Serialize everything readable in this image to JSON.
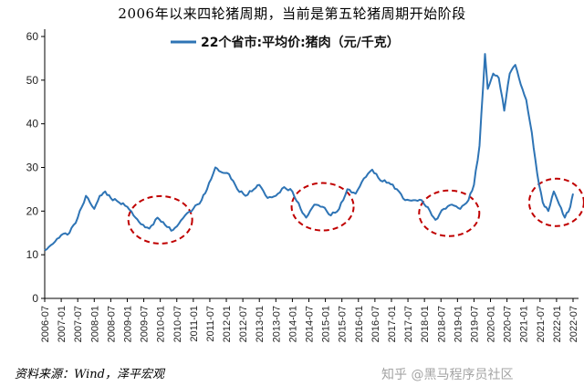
{
  "chart_data": {
    "type": "line",
    "title": "2006年以来四轮猪周期，当前是第五轮猪周期开始阶段",
    "source": "资料来源：Wind，泽平宏观",
    "watermark": "知乎 @黑马程序员社区",
    "ylim": [
      0,
      60
    ],
    "yticks": [
      "0",
      "10",
      "20",
      "30",
      "40",
      "50",
      "60"
    ],
    "xticks": [
      "2006-07",
      "2007-01",
      "2007-07",
      "2008-01",
      "2008-07",
      "2009-01",
      "2009-07",
      "2010-01",
      "2010-07",
      "2011-01",
      "2011-07",
      "2012-01",
      "2012-07",
      "2013-01",
      "2013-07",
      "2014-01",
      "2014-07",
      "2015-01",
      "2015-07",
      "2016-01",
      "2016-07",
      "2017-01",
      "2017-07",
      "2018-01",
      "2018-07",
      "2019-01",
      "2019-07",
      "2020-01",
      "2020-07",
      "2021-01",
      "2021-07",
      "2022-01",
      "2022-07"
    ],
    "grid": false,
    "legend_position": "top",
    "series": [
      {
        "name": "22个省市:平均价:猪肉（元/千克）",
        "color": "#2e74b5",
        "points": [
          [
            "2006-07",
            11.0
          ],
          [
            "2006-10",
            12.5
          ],
          [
            "2007-01",
            14.5
          ],
          [
            "2007-04",
            15.0
          ],
          [
            "2007-07",
            18.5
          ],
          [
            "2007-10",
            23.5
          ],
          [
            "2008-01",
            20.5
          ],
          [
            "2008-03",
            23.5
          ],
          [
            "2008-05",
            24.5
          ],
          [
            "2008-07",
            23.0
          ],
          [
            "2008-10",
            22.0
          ],
          [
            "2009-01",
            21.0
          ],
          [
            "2009-04",
            18.5
          ],
          [
            "2009-06",
            17.0
          ],
          [
            "2009-09",
            16.0
          ],
          [
            "2009-12",
            18.5
          ],
          [
            "2010-02",
            17.5
          ],
          [
            "2010-05",
            15.5
          ],
          [
            "2010-07",
            16.5
          ],
          [
            "2010-10",
            19.0
          ],
          [
            "2011-01",
            20.5
          ],
          [
            "2011-04",
            22.5
          ],
          [
            "2011-06",
            25.0
          ],
          [
            "2011-09",
            30.0
          ],
          [
            "2011-11",
            29.0
          ],
          [
            "2012-02",
            28.5
          ],
          [
            "2012-05",
            25.0
          ],
          [
            "2012-08",
            23.5
          ],
          [
            "2012-11",
            25.0
          ],
          [
            "2013-01",
            26.0
          ],
          [
            "2013-04",
            23.0
          ],
          [
            "2013-07",
            23.5
          ],
          [
            "2013-10",
            25.5
          ],
          [
            "2014-01",
            24.5
          ],
          [
            "2014-04",
            20.5
          ],
          [
            "2014-06",
            18.5
          ],
          [
            "2014-09",
            21.5
          ],
          [
            "2014-12",
            21.0
          ],
          [
            "2015-03",
            19.0
          ],
          [
            "2015-06",
            20.5
          ],
          [
            "2015-09",
            25.0
          ],
          [
            "2015-12",
            24.0
          ],
          [
            "2016-03",
            27.5
          ],
          [
            "2016-06",
            29.5
          ],
          [
            "2016-09",
            27.0
          ],
          [
            "2016-12",
            26.5
          ],
          [
            "2017-03",
            25.0
          ],
          [
            "2017-06",
            22.5
          ],
          [
            "2017-09",
            22.5
          ],
          [
            "2017-12",
            22.5
          ],
          [
            "2018-03",
            20.0
          ],
          [
            "2018-05",
            18.0
          ],
          [
            "2018-08",
            20.5
          ],
          [
            "2018-11",
            21.5
          ],
          [
            "2019-02",
            20.5
          ],
          [
            "2019-05",
            22.5
          ],
          [
            "2019-07",
            26.0
          ],
          [
            "2019-09",
            35.0
          ],
          [
            "2019-11",
            56.0
          ],
          [
            "2019-12",
            48.0
          ],
          [
            "2020-02",
            51.5
          ],
          [
            "2020-04",
            50.5
          ],
          [
            "2020-06",
            43.0
          ],
          [
            "2020-08",
            51.5
          ],
          [
            "2020-10",
            53.5
          ],
          [
            "2020-12",
            49.0
          ],
          [
            "2021-02",
            45.5
          ],
          [
            "2021-04",
            38.0
          ],
          [
            "2021-06",
            28.5
          ],
          [
            "2021-08",
            22.0
          ],
          [
            "2021-10",
            20.0
          ],
          [
            "2021-12",
            24.5
          ],
          [
            "2022-02",
            21.5
          ],
          [
            "2022-04",
            18.5
          ],
          [
            "2022-06",
            21.0
          ],
          [
            "2022-07",
            24.0
          ]
        ]
      }
    ],
    "annotations": [
      {
        "type": "dashed-ellipse",
        "color": "#c00000",
        "x_center": "2010-01",
        "y_center": 18.0
      },
      {
        "type": "dashed-ellipse",
        "color": "#c00000",
        "x_center": "2014-12",
        "y_center": 21.0
      },
      {
        "type": "dashed-ellipse",
        "color": "#c00000",
        "x_center": "2018-10",
        "y_center": 19.5
      },
      {
        "type": "dashed-ellipse",
        "color": "#c00000",
        "x_center": "2022-01",
        "y_center": 22.0
      }
    ]
  }
}
